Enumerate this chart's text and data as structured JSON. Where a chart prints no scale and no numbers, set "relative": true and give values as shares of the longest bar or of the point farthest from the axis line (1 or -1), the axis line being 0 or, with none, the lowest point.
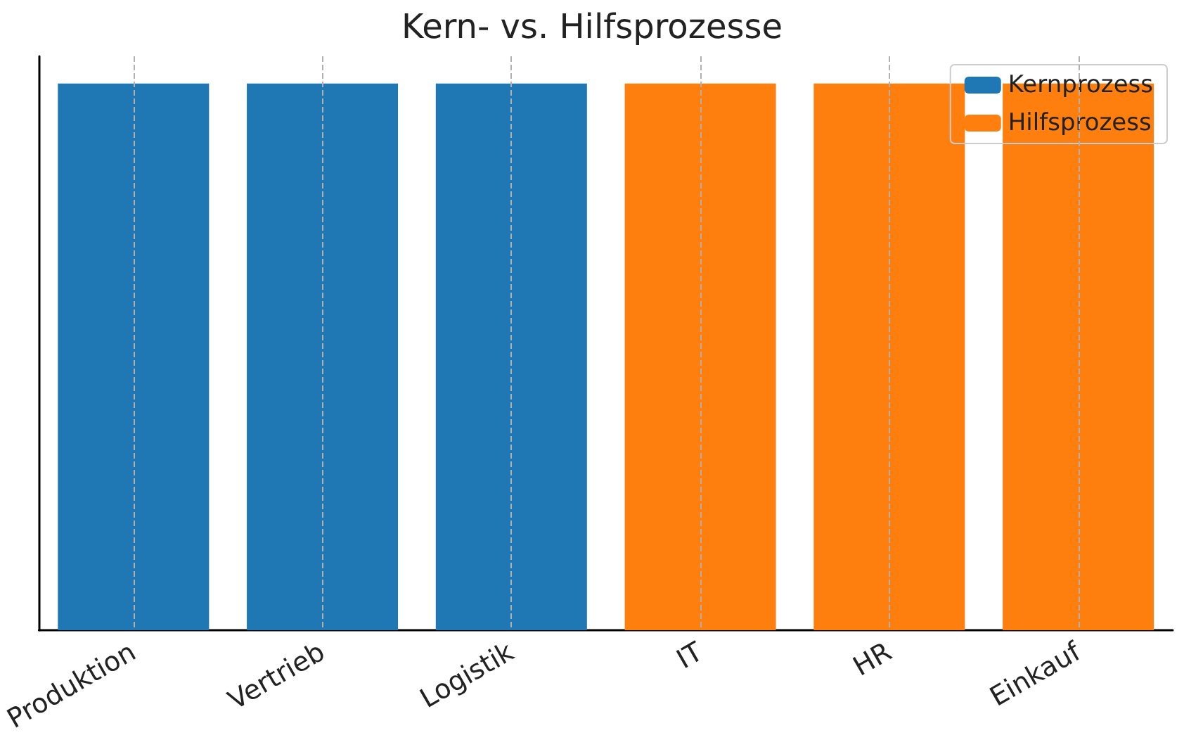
{
  "chart_data": {
    "type": "bar",
    "title": "Kern- vs. Hilfsprozesse",
    "categories": [
      "Produktion",
      "Vertrieb",
      "Logistik",
      "IT",
      "HR",
      "Einkauf"
    ],
    "relative": true,
    "series": [
      {
        "name": "Kernprozess",
        "color": "#1f77b4",
        "values": [
          1,
          1,
          1,
          null,
          null,
          null
        ]
      },
      {
        "name": "Hilfsprozess",
        "color": "#ff7f0e",
        "values": [
          null,
          null,
          null,
          1,
          1,
          1
        ]
      }
    ],
    "grid": "x",
    "legend": "top right"
  }
}
